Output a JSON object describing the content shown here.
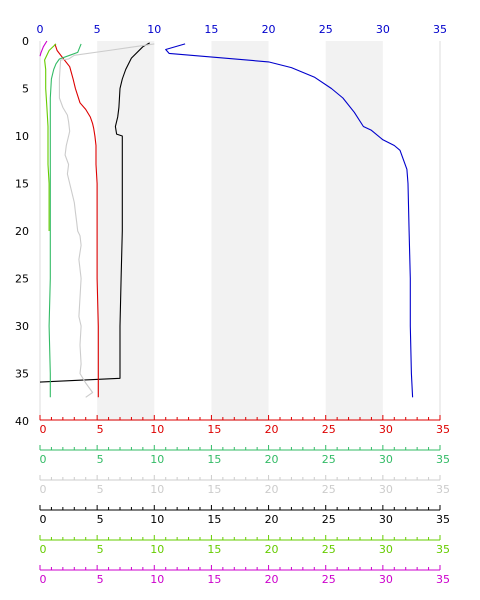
{
  "chart_data": {
    "type": "line",
    "title": "",
    "ylabel": "",
    "y_direction": "down",
    "ylim": [
      0,
      40
    ],
    "y_ticks": [
      0,
      5,
      10,
      15,
      20,
      25,
      30,
      35,
      40
    ],
    "xlim": [
      0,
      35
    ],
    "x_ticks": [
      0,
      5,
      10,
      15,
      20,
      25,
      30,
      35
    ],
    "background_bands": [
      [
        5,
        10
      ],
      [
        15,
        20
      ],
      [
        25,
        30
      ]
    ],
    "band_color": "#f2f2f2",
    "axes": [
      {
        "id": "top",
        "color": "#0000cc",
        "position": "top"
      },
      {
        "id": "red",
        "color": "#dd0000",
        "position": "bottom"
      },
      {
        "id": "green",
        "color": "#33bb66",
        "position": "bottom"
      },
      {
        "id": "gray",
        "color": "#cccccc",
        "position": "bottom"
      },
      {
        "id": "black",
        "color": "#000000",
        "position": "bottom"
      },
      {
        "id": "lime",
        "color": "#66cc00",
        "position": "bottom"
      },
      {
        "id": "magenta",
        "color": "#cc00cc",
        "position": "bottom"
      }
    ],
    "series": [
      {
        "color": "#0000cc",
        "points": [
          [
            12.7,
            0.3
          ],
          [
            11,
            0.9
          ],
          [
            11.3,
            1.3
          ],
          [
            20,
            2.2
          ],
          [
            22,
            2.8
          ],
          [
            24,
            3.8
          ],
          [
            25.5,
            5
          ],
          [
            26.5,
            6
          ],
          [
            27.5,
            7.5
          ],
          [
            28.3,
            9
          ],
          [
            29,
            9.4
          ],
          [
            30,
            10.4
          ],
          [
            31,
            11
          ],
          [
            31.5,
            11.5
          ],
          [
            32.1,
            13.5
          ],
          [
            32.2,
            15
          ],
          [
            32.3,
            20
          ],
          [
            32.4,
            25
          ],
          [
            32.4,
            30
          ],
          [
            32.5,
            35
          ],
          [
            32.6,
            37.5
          ]
        ]
      },
      {
        "color": "#000000",
        "points": [
          [
            9.6,
            0.2
          ],
          [
            9,
            0.6
          ],
          [
            8,
            1.8
          ],
          [
            7.5,
            3
          ],
          [
            7.2,
            4
          ],
          [
            7,
            5
          ],
          [
            6.9,
            7
          ],
          [
            6.8,
            8
          ],
          [
            6.6,
            9
          ],
          [
            6.7,
            9.8
          ],
          [
            7.2,
            10
          ],
          [
            7.2,
            15
          ],
          [
            7.2,
            20
          ],
          [
            7.1,
            25
          ],
          [
            7,
            30
          ],
          [
            7,
            35.5
          ],
          [
            0,
            35.9
          ]
        ]
      },
      {
        "color": "#dd0000",
        "points": [
          [
            1.3,
            0.3
          ],
          [
            1.5,
            1
          ],
          [
            2,
            1.8
          ],
          [
            2.6,
            2.7
          ],
          [
            2.9,
            4
          ],
          [
            3.1,
            5
          ],
          [
            3.5,
            6.5
          ],
          [
            4,
            7.2
          ],
          [
            4.4,
            8
          ],
          [
            4.6,
            8.7
          ],
          [
            4.7,
            9.2
          ],
          [
            4.8,
            10
          ],
          [
            4.9,
            11
          ],
          [
            4.9,
            12
          ],
          [
            4.9,
            13
          ],
          [
            5,
            15
          ],
          [
            5,
            20
          ],
          [
            5,
            25
          ],
          [
            5.1,
            30
          ],
          [
            5.1,
            35
          ],
          [
            5.1,
            37.5
          ]
        ]
      },
      {
        "color": "#33bb66",
        "points": [
          [
            3.6,
            0.3
          ],
          [
            3.3,
            1.2
          ],
          [
            2.6,
            1.5
          ],
          [
            1.7,
            1.9
          ],
          [
            1.4,
            2.4
          ],
          [
            1.2,
            3
          ],
          [
            1,
            4
          ],
          [
            0.9,
            6
          ],
          [
            0.9,
            8
          ],
          [
            0.9,
            10
          ],
          [
            0.9,
            15
          ],
          [
            0.9,
            20
          ],
          [
            0.9,
            25
          ],
          [
            0.8,
            30
          ],
          [
            0.9,
            35
          ],
          [
            0.9,
            37.5
          ]
        ]
      },
      {
        "color": "#66cc00",
        "points": [
          [
            1.4,
            0.3
          ],
          [
            0.8,
            1
          ],
          [
            0.4,
            2
          ],
          [
            0.5,
            3
          ],
          [
            0.5,
            5
          ],
          [
            0.6,
            7
          ],
          [
            0.7,
            9
          ],
          [
            0.7,
            11
          ],
          [
            0.7,
            13
          ],
          [
            0.8,
            15
          ],
          [
            0.8,
            17
          ],
          [
            0.8,
            20
          ]
        ]
      },
      {
        "color": "#cc00cc",
        "points": [
          [
            0.6,
            0
          ],
          [
            0.3,
            0.6
          ],
          [
            0.1,
            1.2
          ],
          [
            0,
            1.6
          ]
        ]
      },
      {
        "color": "#cccccc",
        "points": [
          [
            10,
            0.3
          ],
          [
            6,
            1
          ],
          [
            3,
            1.5
          ],
          [
            2.5,
            1.9
          ],
          [
            1.8,
            2
          ],
          [
            1.7,
            4
          ],
          [
            1.7,
            6
          ],
          [
            2,
            7
          ],
          [
            2.4,
            7.8
          ],
          [
            2.5,
            8.5
          ],
          [
            2.6,
            9.5
          ],
          [
            2.5,
            10
          ],
          [
            2.3,
            11
          ],
          [
            2.2,
            12
          ],
          [
            2.5,
            13
          ],
          [
            2.4,
            14
          ],
          [
            2.6,
            15
          ],
          [
            2.8,
            16
          ],
          [
            3,
            17
          ],
          [
            3.1,
            18
          ],
          [
            3.2,
            19
          ],
          [
            3.3,
            20
          ],
          [
            3.5,
            20.5
          ],
          [
            3.6,
            21.5
          ],
          [
            3.4,
            23
          ],
          [
            3.6,
            25
          ],
          [
            3.5,
            27
          ],
          [
            3.4,
            29
          ],
          [
            3.6,
            30
          ],
          [
            3.5,
            32
          ],
          [
            3.6,
            34
          ],
          [
            3.5,
            35
          ],
          [
            4,
            36
          ],
          [
            4.6,
            37
          ],
          [
            4,
            37.5
          ]
        ]
      }
    ]
  }
}
